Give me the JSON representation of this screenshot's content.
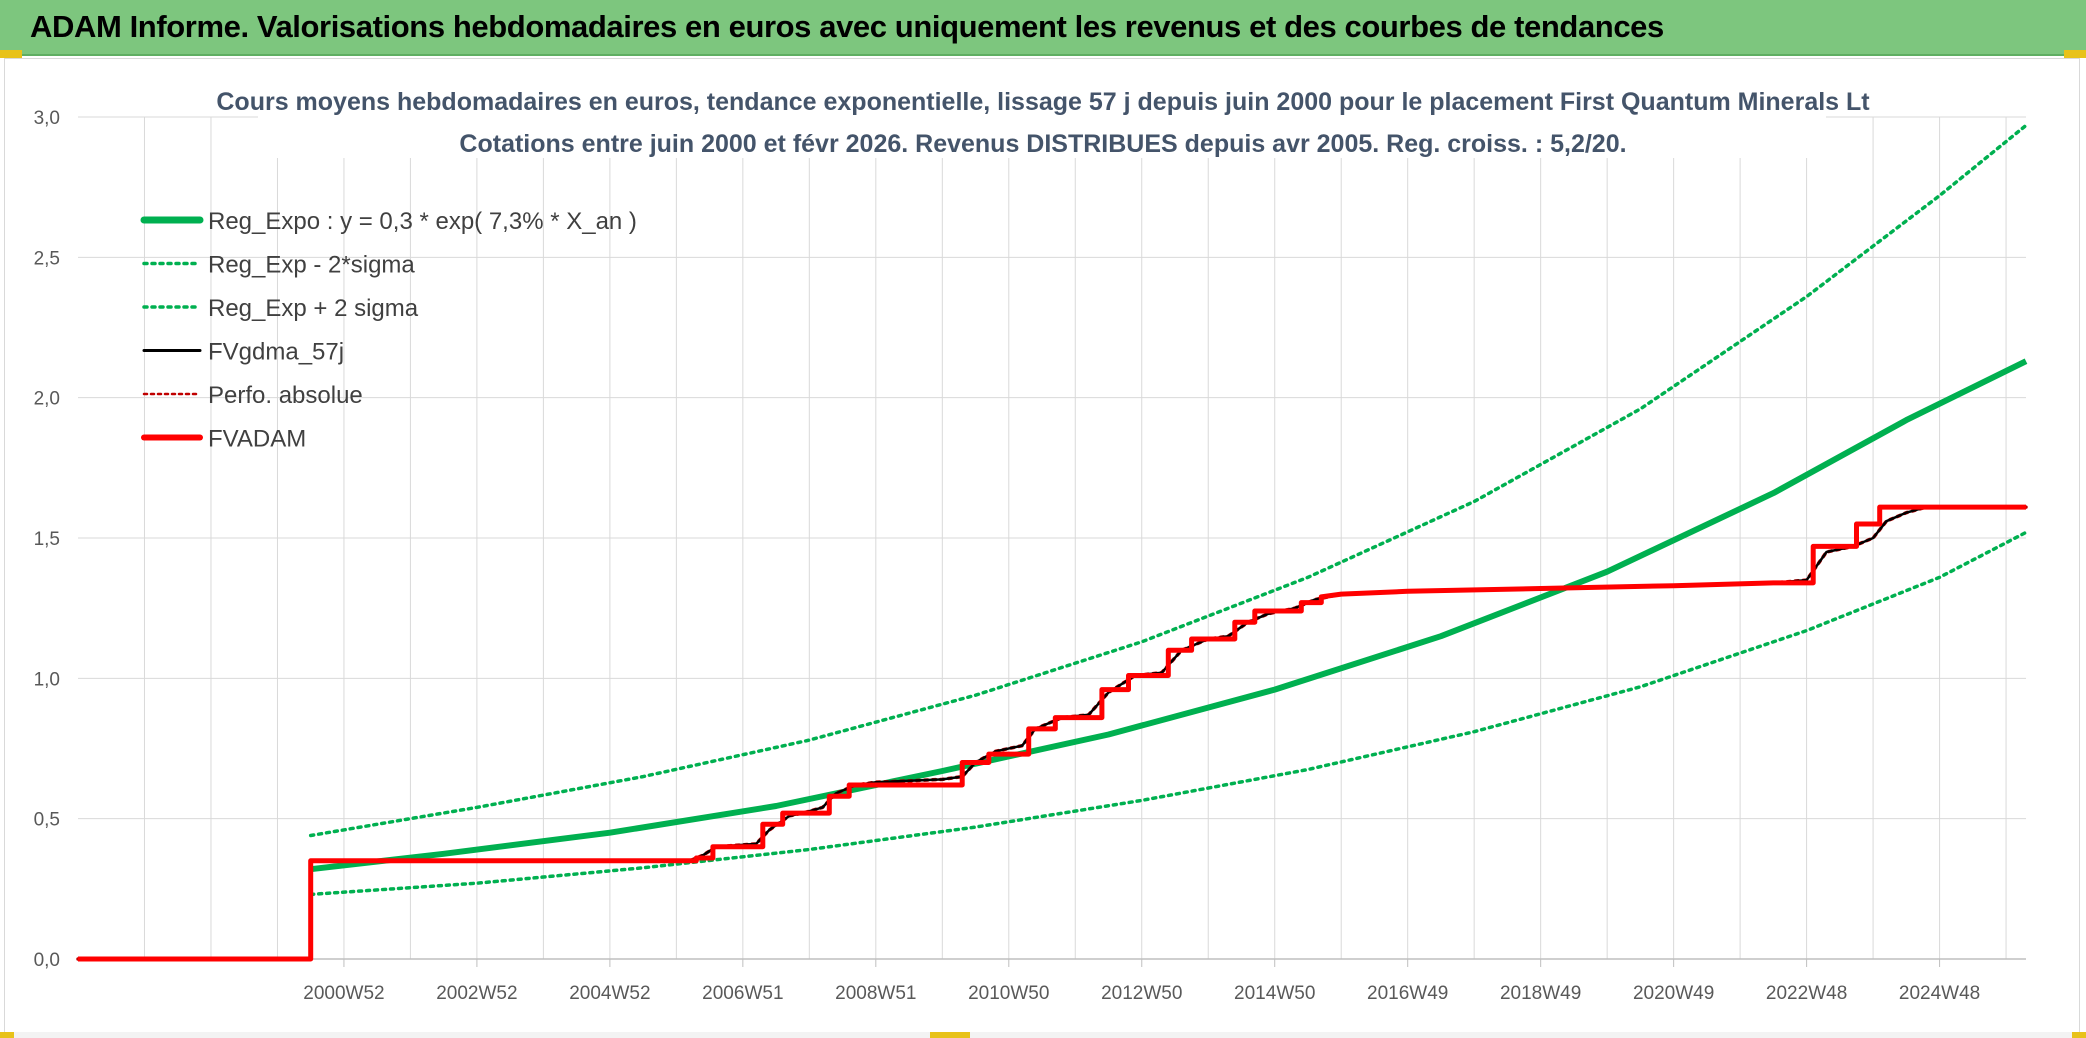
{
  "header": {
    "title": "ADAM Informe. Valorisations hebdomadaires en euros avec uniquement les revenus et des courbes de tendances"
  },
  "colors": {
    "banner": "#7dc67e",
    "trend": "#00b050",
    "fvgdma": "#000000",
    "fvadam": "#ff0000",
    "perfo": "#c00000",
    "grid": "#d9d9d9"
  },
  "chart_data": {
    "type": "line",
    "title": "Cours moyens hebdomadaires en euros, tendance exponentielle, lissage 57 j depuis juin 2000 pour le placement First Quantum Minerals Lt",
    "subtitle": "Cotations entre juin 2000 et févr 2026. Revenus DISTRIBUES depuis avr 2005. Reg. croiss. : 5,2/20.",
    "xlabel": "",
    "ylabel": "",
    "xlim": [
      1997.0,
      2026.3
    ],
    "ylim": [
      0,
      3.0
    ],
    "ytick_values": [
      0,
      0.5,
      1.0,
      1.5,
      2.0,
      2.5,
      3.0
    ],
    "ytick_labels": [
      "0,0",
      "0,5",
      "1,0",
      "1,5",
      "2,0",
      "2,5",
      "3,0"
    ],
    "xticks": [
      {
        "x": 2001.0,
        "label": "2000W52"
      },
      {
        "x": 2003.0,
        "label": "2002W52"
      },
      {
        "x": 2005.0,
        "label": "2004W52"
      },
      {
        "x": 2007.0,
        "label": "2006W51"
      },
      {
        "x": 2009.0,
        "label": "2008W51"
      },
      {
        "x": 2011.0,
        "label": "2010W50"
      },
      {
        "x": 2013.0,
        "label": "2012W50"
      },
      {
        "x": 2015.0,
        "label": "2014W50"
      },
      {
        "x": 2017.0,
        "label": "2016W49"
      },
      {
        "x": 2019.0,
        "label": "2018W49"
      },
      {
        "x": 2021.0,
        "label": "2020W49"
      },
      {
        "x": 2023.0,
        "label": "2022W48"
      },
      {
        "x": 2025.0,
        "label": "2024W48"
      }
    ],
    "grid": true,
    "legend_position": "top-left",
    "series": [
      {
        "name": "Reg_Expo : y = 0,3 * exp( 7,3% *  X_an )",
        "style": "solid-thick",
        "color": "#00b050",
        "points": [
          [
            2000.5,
            0.32
          ],
          [
            2002.5,
            0.375
          ],
          [
            2005.0,
            0.45
          ],
          [
            2007.5,
            0.545
          ],
          [
            2010.0,
            0.67
          ],
          [
            2012.5,
            0.8
          ],
          [
            2015.0,
            0.96
          ],
          [
            2017.5,
            1.15
          ],
          [
            2020.0,
            1.38
          ],
          [
            2022.5,
            1.66
          ],
          [
            2024.5,
            1.92
          ],
          [
            2026.3,
            2.13
          ]
        ]
      },
      {
        "name": "Reg_Exp - 2*sigma",
        "style": "dotted",
        "color": "#00b050",
        "points": [
          [
            2000.5,
            0.23
          ],
          [
            2003.0,
            0.27
          ],
          [
            2005.5,
            0.325
          ],
          [
            2008.0,
            0.39
          ],
          [
            2010.5,
            0.47
          ],
          [
            2013.0,
            0.565
          ],
          [
            2015.5,
            0.675
          ],
          [
            2018.0,
            0.81
          ],
          [
            2020.5,
            0.97
          ],
          [
            2023.0,
            1.17
          ],
          [
            2025.0,
            1.36
          ],
          [
            2026.3,
            1.52
          ]
        ]
      },
      {
        "name": "Reg_Exp + 2 sigma",
        "style": "dotted",
        "color": "#00b050",
        "points": [
          [
            2000.5,
            0.44
          ],
          [
            2003.0,
            0.54
          ],
          [
            2005.5,
            0.65
          ],
          [
            2008.0,
            0.78
          ],
          [
            2010.5,
            0.94
          ],
          [
            2013.0,
            1.13
          ],
          [
            2015.5,
            1.36
          ],
          [
            2018.0,
            1.63
          ],
          [
            2020.5,
            1.96
          ],
          [
            2023.0,
            2.36
          ],
          [
            2025.0,
            2.72
          ],
          [
            2026.3,
            2.97
          ]
        ]
      },
      {
        "name": "FVgdma_57j",
        "style": "solid",
        "color": "#000000",
        "points": [
          [
            1997.0,
            0.0
          ],
          [
            2000.5,
            0.0
          ],
          [
            2000.5,
            0.35
          ],
          [
            2006.2,
            0.35
          ],
          [
            2006.4,
            0.37
          ],
          [
            2006.6,
            0.4
          ],
          [
            2007.2,
            0.41
          ],
          [
            2007.4,
            0.46
          ],
          [
            2007.7,
            0.51
          ],
          [
            2007.9,
            0.52
          ],
          [
            2008.2,
            0.54
          ],
          [
            2008.4,
            0.59
          ],
          [
            2008.7,
            0.62
          ],
          [
            2009.0,
            0.63
          ],
          [
            2010.0,
            0.64
          ],
          [
            2010.3,
            0.65
          ],
          [
            2010.5,
            0.7
          ],
          [
            2010.8,
            0.74
          ],
          [
            2011.2,
            0.76
          ],
          [
            2011.4,
            0.82
          ],
          [
            2011.8,
            0.86
          ],
          [
            2012.2,
            0.87
          ],
          [
            2012.5,
            0.95
          ],
          [
            2012.9,
            1.01
          ],
          [
            2013.3,
            1.02
          ],
          [
            2013.6,
            1.1
          ],
          [
            2014.0,
            1.14
          ],
          [
            2014.3,
            1.15
          ],
          [
            2014.6,
            1.2
          ],
          [
            2014.9,
            1.23
          ],
          [
            2015.3,
            1.25
          ],
          [
            2015.6,
            1.28
          ],
          [
            2016.0,
            1.3
          ],
          [
            2017.0,
            1.31
          ],
          [
            2019.0,
            1.32
          ],
          [
            2021.0,
            1.33
          ],
          [
            2022.5,
            1.34
          ],
          [
            2023.0,
            1.35
          ],
          [
            2023.3,
            1.45
          ],
          [
            2023.7,
            1.47
          ],
          [
            2024.0,
            1.5
          ],
          [
            2024.2,
            1.56
          ],
          [
            2024.5,
            1.59
          ],
          [
            2024.8,
            1.61
          ],
          [
            2026.3,
            1.61
          ]
        ]
      },
      {
        "name": "Perfo. absolue",
        "style": "dotted",
        "color": "#c00000",
        "points": [
          [
            1997.0,
            0.0
          ],
          [
            2000.5,
            0.0
          ],
          [
            2000.5,
            0.35
          ],
          [
            2006.2,
            0.35
          ],
          [
            2006.4,
            0.37
          ],
          [
            2006.6,
            0.4
          ],
          [
            2007.2,
            0.41
          ],
          [
            2007.4,
            0.46
          ],
          [
            2007.7,
            0.51
          ],
          [
            2007.9,
            0.52
          ],
          [
            2008.2,
            0.54
          ],
          [
            2008.4,
            0.59
          ],
          [
            2008.7,
            0.62
          ],
          [
            2009.0,
            0.63
          ],
          [
            2010.0,
            0.64
          ],
          [
            2010.3,
            0.65
          ],
          [
            2010.5,
            0.7
          ],
          [
            2010.8,
            0.74
          ],
          [
            2011.2,
            0.76
          ],
          [
            2011.4,
            0.82
          ],
          [
            2011.8,
            0.86
          ],
          [
            2012.2,
            0.87
          ],
          [
            2012.5,
            0.95
          ],
          [
            2012.9,
            1.01
          ],
          [
            2013.3,
            1.02
          ],
          [
            2013.6,
            1.1
          ],
          [
            2014.0,
            1.14
          ],
          [
            2014.3,
            1.15
          ],
          [
            2014.6,
            1.2
          ],
          [
            2014.9,
            1.23
          ],
          [
            2015.3,
            1.25
          ],
          [
            2015.6,
            1.28
          ],
          [
            2016.0,
            1.3
          ],
          [
            2017.0,
            1.31
          ],
          [
            2019.0,
            1.32
          ],
          [
            2021.0,
            1.33
          ],
          [
            2022.5,
            1.34
          ],
          [
            2023.0,
            1.35
          ],
          [
            2023.3,
            1.45
          ],
          [
            2023.7,
            1.47
          ],
          [
            2024.0,
            1.5
          ],
          [
            2024.2,
            1.56
          ],
          [
            2024.5,
            1.59
          ],
          [
            2024.8,
            1.61
          ],
          [
            2026.3,
            1.61
          ]
        ]
      },
      {
        "name": "FVADAM",
        "style": "step-thick",
        "color": "#ff0000",
        "points": [
          [
            1997.0,
            0.0
          ],
          [
            2000.5,
            0.0
          ],
          [
            2000.5,
            0.35
          ],
          [
            2006.3,
            0.35
          ],
          [
            2006.3,
            0.36
          ],
          [
            2006.55,
            0.36
          ],
          [
            2006.55,
            0.4
          ],
          [
            2007.3,
            0.4
          ],
          [
            2007.3,
            0.48
          ],
          [
            2007.6,
            0.48
          ],
          [
            2007.6,
            0.52
          ],
          [
            2008.3,
            0.52
          ],
          [
            2008.3,
            0.58
          ],
          [
            2008.6,
            0.58
          ],
          [
            2008.6,
            0.62
          ],
          [
            2010.3,
            0.62
          ],
          [
            2010.3,
            0.7
          ],
          [
            2010.7,
            0.7
          ],
          [
            2010.7,
            0.73
          ],
          [
            2011.3,
            0.73
          ],
          [
            2011.3,
            0.82
          ],
          [
            2011.7,
            0.82
          ],
          [
            2011.7,
            0.86
          ],
          [
            2012.4,
            0.86
          ],
          [
            2012.4,
            0.96
          ],
          [
            2012.8,
            0.96
          ],
          [
            2012.8,
            1.01
          ],
          [
            2013.4,
            1.01
          ],
          [
            2013.4,
            1.1
          ],
          [
            2013.75,
            1.1
          ],
          [
            2013.75,
            1.14
          ],
          [
            2014.4,
            1.14
          ],
          [
            2014.4,
            1.2
          ],
          [
            2014.7,
            1.2
          ],
          [
            2014.7,
            1.24
          ],
          [
            2015.4,
            1.24
          ],
          [
            2015.4,
            1.27
          ],
          [
            2015.7,
            1.27
          ],
          [
            2015.7,
            1.29
          ],
          [
            2016.0,
            1.3
          ],
          [
            2017.0,
            1.31
          ],
          [
            2019.0,
            1.32
          ],
          [
            2021.0,
            1.33
          ],
          [
            2022.5,
            1.34
          ],
          [
            2023.1,
            1.34
          ],
          [
            2023.1,
            1.47
          ],
          [
            2023.75,
            1.47
          ],
          [
            2023.75,
            1.55
          ],
          [
            2024.1,
            1.55
          ],
          [
            2024.1,
            1.61
          ],
          [
            2026.3,
            1.61
          ]
        ]
      }
    ]
  }
}
